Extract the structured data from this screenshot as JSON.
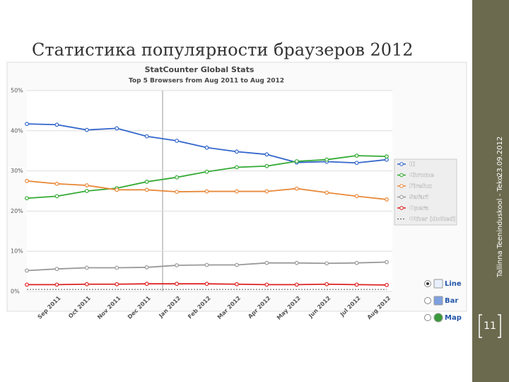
{
  "slide": {
    "title": "Статистика популярности браузеров 2012",
    "footer": "Tallinna Teeninduskool - Teko",
    "date": "23.09.2012",
    "page": "11"
  },
  "controls": [
    "Line",
    "Bar",
    "Map"
  ],
  "chart_data": {
    "type": "line",
    "title": "StatCounter Global Stats",
    "subtitle": "Top 5 Browsers from Aug 2011 to Aug 2012",
    "categories": [
      null,
      "Sep 2011",
      "Oct 2011",
      "Nov 2011",
      "Dec 2011",
      "Jan 2012",
      "Feb 2012",
      "Mar 2012",
      "Apr 2012",
      "May 2012",
      "Jun 2012",
      "Jul 2012",
      "Aug 2012"
    ],
    "ylim": [
      0,
      50
    ],
    "yticks": [
      {
        "value": 0,
        "label": "0%"
      },
      {
        "value": 10,
        "label": "10%"
      },
      {
        "value": 20,
        "label": "20%"
      },
      {
        "value": 30,
        "label": "30%"
      },
      {
        "value": 40,
        "label": "40%"
      },
      {
        "value": 50,
        "label": "50%"
      }
    ],
    "grid": true,
    "series": [
      {
        "name": "IE",
        "color": "#3366cc",
        "values": [
          41.7,
          41.5,
          40.2,
          40.6,
          38.6,
          37.5,
          35.8,
          34.8,
          34.1,
          32.1,
          32.3,
          32.0,
          32.8
        ]
      },
      {
        "name": "Chrome",
        "color": "#33aa33",
        "values": [
          23.2,
          23.7,
          25.0,
          25.7,
          27.3,
          28.4,
          29.8,
          30.9,
          31.2,
          32.4,
          32.8,
          33.8,
          33.6
        ]
      },
      {
        "name": "Firefox",
        "color": "#e8893a",
        "values": [
          27.5,
          26.8,
          26.4,
          25.3,
          25.3,
          24.8,
          24.9,
          24.9,
          24.9,
          25.6,
          24.6,
          23.7,
          22.9
        ]
      },
      {
        "name": "Safari",
        "color": "#999999",
        "values": [
          5.2,
          5.6,
          5.9,
          5.9,
          6.0,
          6.5,
          6.6,
          6.6,
          7.1,
          7.1,
          7.0,
          7.1,
          7.3
        ]
      },
      {
        "name": "Opera",
        "color": "#dd2222",
        "values": [
          1.7,
          1.7,
          1.8,
          1.8,
          1.9,
          1.9,
          1.9,
          1.8,
          1.7,
          1.7,
          1.8,
          1.7,
          1.6
        ]
      },
      {
        "name": "Other (dotted)",
        "color": "#555555",
        "dashed": true,
        "values": [
          0.5,
          0.5,
          0.5,
          0.5,
          0.5,
          0.5,
          0.5,
          0.5,
          0.5,
          0.5,
          0.5,
          0.5,
          0.5
        ]
      }
    ]
  }
}
